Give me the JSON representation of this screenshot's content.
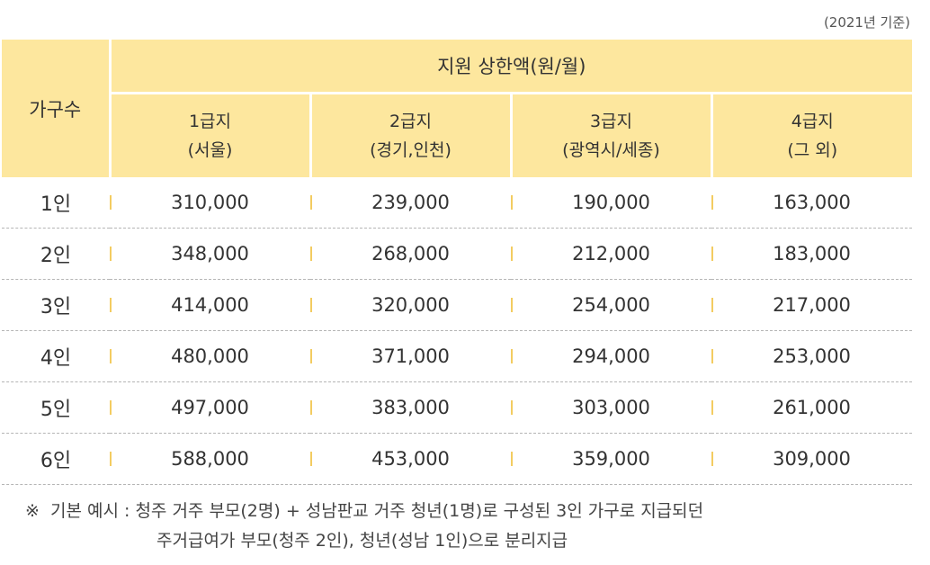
{
  "basis_text": "(2021년 기준)",
  "header": {
    "household_label": "가구수",
    "limit_title": "지원 상한액(원/월)",
    "grades": [
      {
        "name": "1급지",
        "region": "(서울)"
      },
      {
        "name": "2급지",
        "region": "(경기,인천)"
      },
      {
        "name": "3급지",
        "region": "(광역시/세종)"
      },
      {
        "name": "4급지",
        "region": "(그 외)"
      }
    ]
  },
  "rows": [
    {
      "family": "1인",
      "values": [
        "310,000",
        "239,000",
        "190,000",
        "163,000"
      ]
    },
    {
      "family": "2인",
      "values": [
        "348,000",
        "268,000",
        "212,000",
        "183,000"
      ]
    },
    {
      "family": "3인",
      "values": [
        "414,000",
        "320,000",
        "254,000",
        "217,000"
      ]
    },
    {
      "family": "4인",
      "values": [
        "480,000",
        "371,000",
        "294,000",
        "253,000"
      ]
    },
    {
      "family": "5인",
      "values": [
        "497,000",
        "383,000",
        "303,000",
        "261,000"
      ]
    },
    {
      "family": "6인",
      "values": [
        "588,000",
        "453,000",
        "359,000",
        "309,000"
      ]
    }
  ],
  "note": {
    "symbol": "※",
    "line1": "기본 예시 :  청주 거주 부모(2명) + 성남판교 거주 청년(1명)로 구성된 3인 가구로 지급되던",
    "line2": "주거급여가 부모(청주 2인), 청년(성남 1인)으로 분리지급"
  },
  "colors": {
    "header_bg": "#fde79e",
    "separator": "#f3cc61",
    "text": "#333333"
  }
}
